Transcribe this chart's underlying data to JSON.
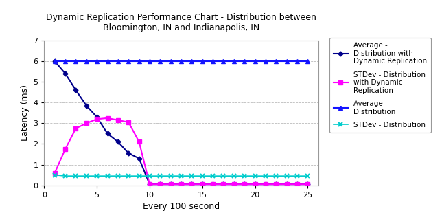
{
  "title": "Dynamic Replication Performance Chart - Distribution between\nBloomington, IN and Indianapolis, IN",
  "xlabel": "Every 100 second",
  "ylabel": "Latency (ms)",
  "ylim": [
    0,
    7
  ],
  "xlim": [
    0,
    26
  ],
  "xticks": [
    0,
    5,
    10,
    15,
    20,
    25
  ],
  "yticks": [
    0,
    1,
    2,
    3,
    4,
    5,
    6,
    7
  ],
  "avg_dyn_x": [
    1,
    2,
    3,
    4,
    5,
    6,
    7,
    8,
    9,
    10,
    11,
    12,
    13,
    14,
    15,
    16,
    17,
    18,
    19,
    20,
    21,
    22,
    23,
    24,
    25
  ],
  "avg_dyn_y": [
    6.0,
    5.4,
    4.6,
    3.85,
    3.3,
    2.5,
    2.1,
    1.55,
    1.3,
    0.05,
    0.05,
    0.05,
    0.05,
    0.05,
    0.05,
    0.05,
    0.05,
    0.05,
    0.05,
    0.05,
    0.05,
    0.05,
    0.05,
    0.05,
    0.05
  ],
  "std_dyn_x": [
    1,
    2,
    3,
    4,
    5,
    6,
    7,
    8,
    9,
    10,
    11,
    12,
    13,
    14,
    15,
    16,
    17,
    18,
    19,
    20,
    21,
    22,
    23,
    24,
    25
  ],
  "std_dyn_y": [
    0.6,
    1.75,
    2.75,
    3.0,
    3.2,
    3.25,
    3.15,
    3.05,
    2.1,
    0.05,
    0.05,
    0.05,
    0.05,
    0.05,
    0.05,
    0.05,
    0.05,
    0.05,
    0.05,
    0.05,
    0.05,
    0.05,
    0.05,
    0.05,
    0.05
  ],
  "avg_x": [
    1,
    2,
    3,
    4,
    5,
    6,
    7,
    8,
    9,
    10,
    11,
    12,
    13,
    14,
    15,
    16,
    17,
    18,
    19,
    20,
    21,
    22,
    23,
    24,
    25
  ],
  "avg_y": [
    6.0,
    6.0,
    6.0,
    6.0,
    6.0,
    6.0,
    6.0,
    6.0,
    6.0,
    6.0,
    6.0,
    6.0,
    6.0,
    6.0,
    6.0,
    6.0,
    6.0,
    6.0,
    6.0,
    6.0,
    6.0,
    6.0,
    6.0,
    6.0,
    6.0
  ],
  "std_x": [
    1,
    2,
    3,
    4,
    5,
    6,
    7,
    8,
    9,
    10,
    11,
    12,
    13,
    14,
    15,
    16,
    17,
    18,
    19,
    20,
    21,
    22,
    23,
    24,
    25
  ],
  "std_y": [
    0.5,
    0.45,
    0.45,
    0.45,
    0.45,
    0.45,
    0.45,
    0.45,
    0.45,
    0.45,
    0.45,
    0.45,
    0.45,
    0.45,
    0.45,
    0.45,
    0.45,
    0.45,
    0.45,
    0.45,
    0.45,
    0.45,
    0.45,
    0.45,
    0.45
  ],
  "color_avg_dyn": "#00008B",
  "color_std_dyn": "#FF00FF",
  "color_avg": "#1414FF",
  "color_std": "#00CCCC",
  "legend_labels": [
    "Average -\nDistribution with\nDynamic Replication",
    "STDev - Distribution\nwith Dynamic\nReplication",
    "Average -\nDistribution",
    "STDev - Distribution"
  ],
  "background_color": "#FFFFFF",
  "grid_color": "#BBBBBB",
  "title_fontsize": 9,
  "axis_fontsize": 9,
  "tick_fontsize": 8,
  "legend_fontsize": 7.5
}
